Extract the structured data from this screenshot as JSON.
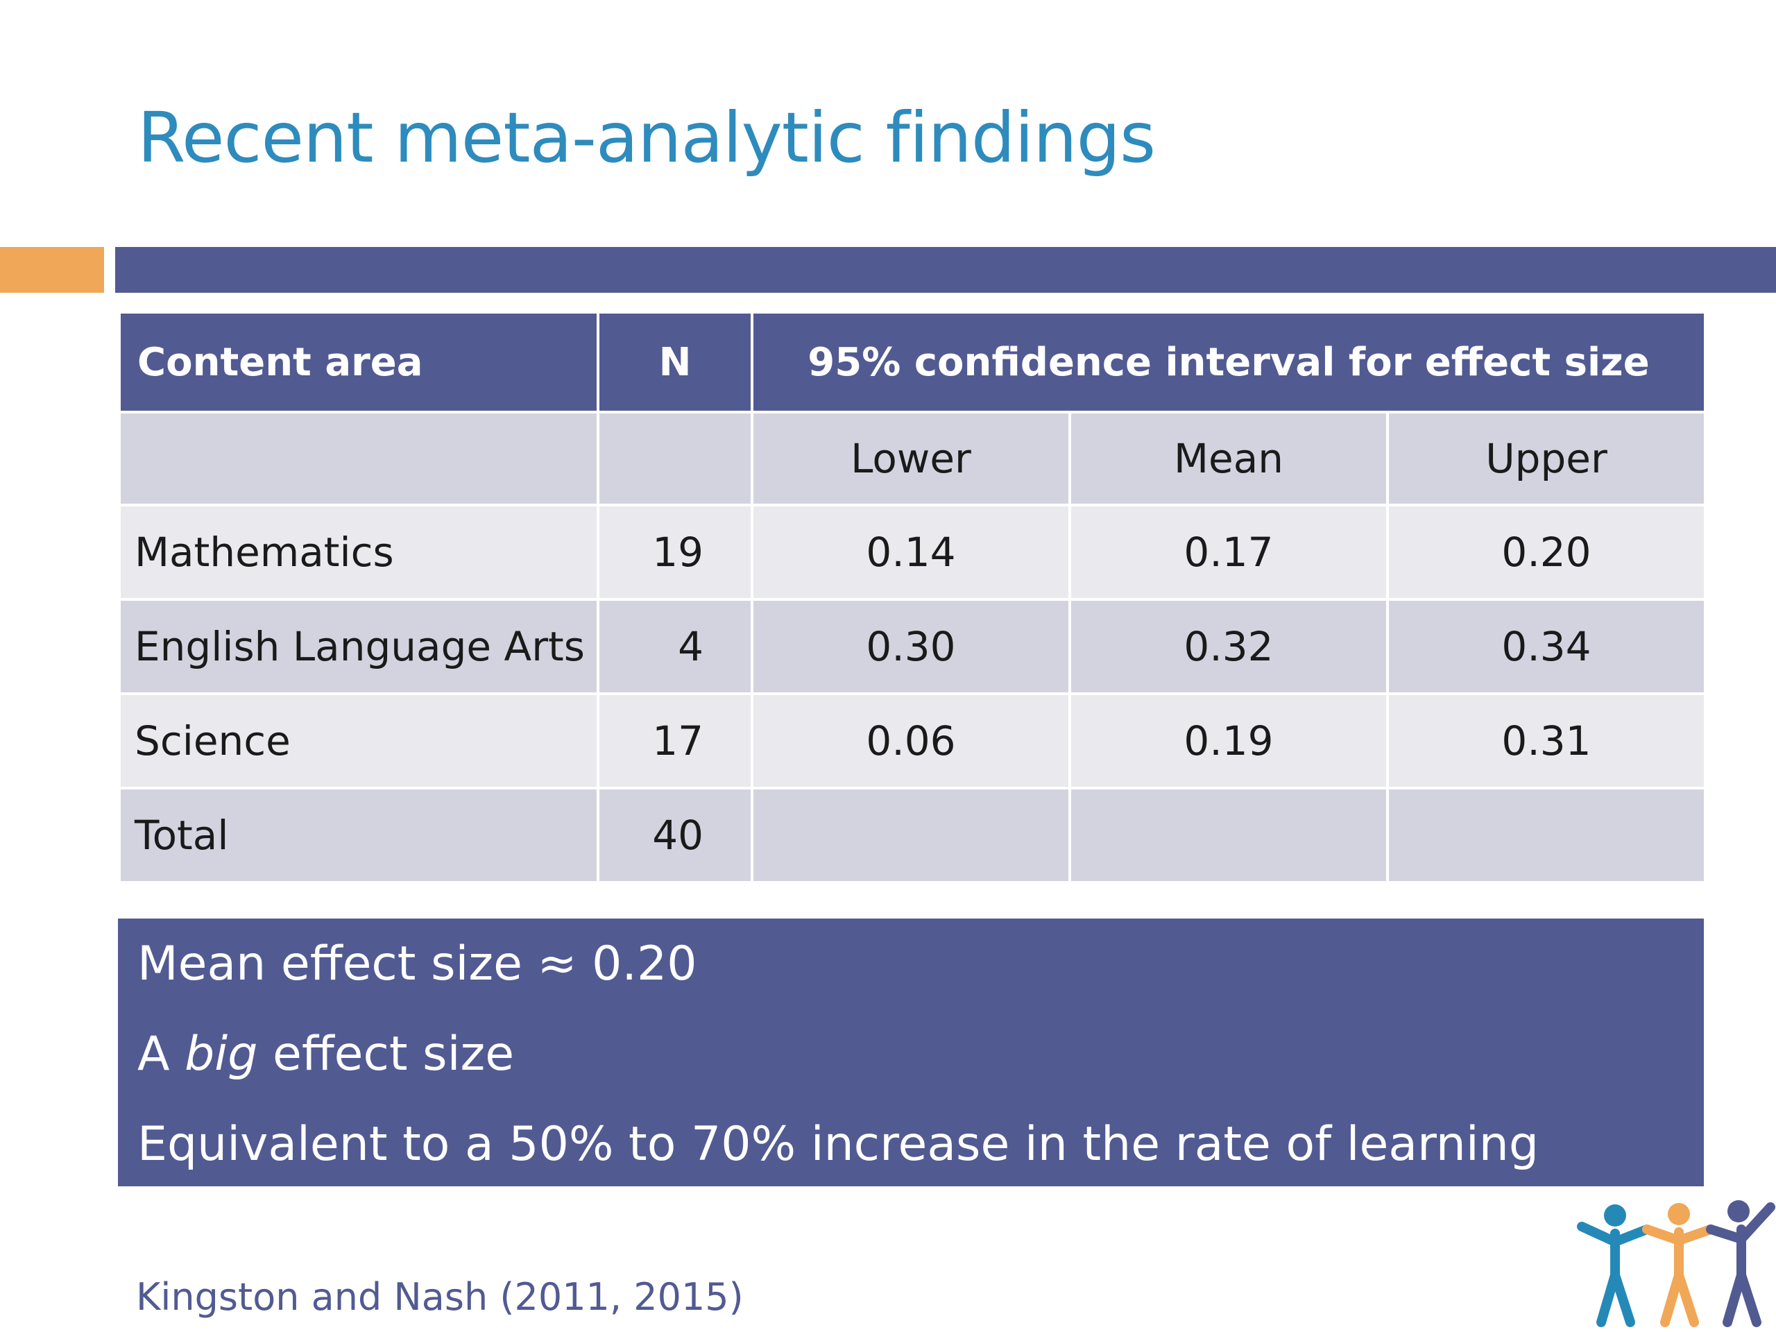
{
  "slide": {
    "title": "Recent meta-analytic findings",
    "colors": {
      "title": "#2e8bbd",
      "accent_orange": "#f0a758",
      "accent_purple": "#525a92"
    }
  },
  "table": {
    "headers": {
      "content_area": "Content area",
      "n": "N",
      "ci": "95% confidence interval for effect size"
    },
    "subheaders": {
      "lower": "Lower",
      "mean": "Mean",
      "upper": "Upper"
    },
    "rows": [
      {
        "area": "Mathematics",
        "n": "19",
        "lower": "0.14",
        "mean": "0.17",
        "upper": "0.20"
      },
      {
        "area": "English Language Arts",
        "n": "4",
        "lower": "0.30",
        "mean": "0.32",
        "upper": "0.34"
      },
      {
        "area": "Science",
        "n": "17",
        "lower": "0.06",
        "mean": "0.19",
        "upper": "0.31"
      },
      {
        "area": "Total",
        "n": "40",
        "lower": "",
        "mean": "",
        "upper": ""
      }
    ]
  },
  "summary": {
    "line1": "Mean effect size ≈ 0.20",
    "line2_prefix": "A ",
    "line2_emph": "big",
    "line2_suffix": " effect size",
    "line3": "Equivalent to a 50% to 70% increase in the rate of learning"
  },
  "citation": "Kingston and Nash (2011, 2015)",
  "logo": {
    "icon": "three-people-icon",
    "colors": [
      "#2589b8",
      "#f0a758",
      "#525a92"
    ]
  }
}
